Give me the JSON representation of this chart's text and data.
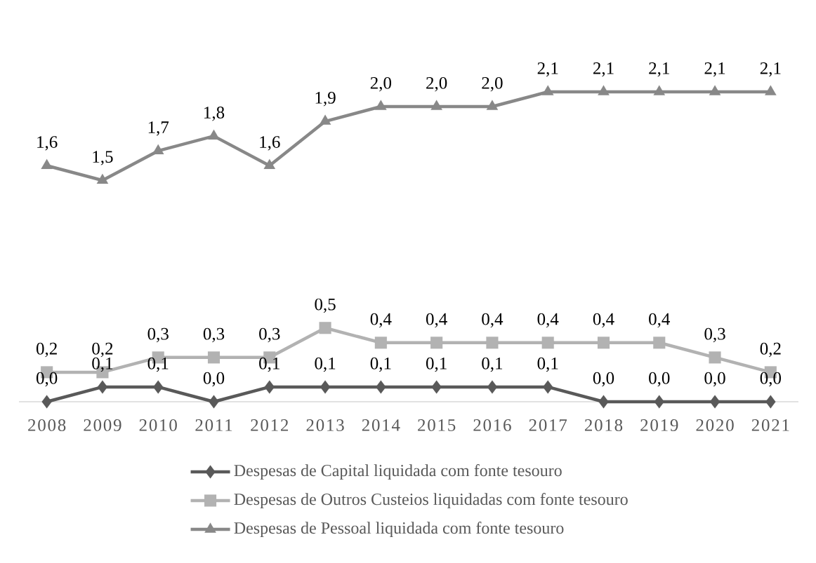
{
  "chart_data": {
    "type": "line",
    "categories": [
      "2008",
      "2009",
      "2010",
      "2011",
      "2012",
      "2013",
      "2014",
      "2015",
      "2016",
      "2017",
      "2018",
      "2019",
      "2020",
      "2021"
    ],
    "tick_labels": "x",
    "legend": "bottom",
    "series": [
      {
        "name": "Despesas de Capital liquidada com fonte tesouro",
        "color": "#595959",
        "marker": "diamond",
        "values": [
          0.0,
          0.1,
          0.1,
          0.0,
          0.1,
          0.1,
          0.1,
          0.1,
          0.1,
          0.1,
          0.0,
          0.0,
          0.0,
          0.0
        ],
        "value_labels": [
          "0,0",
          "0,1",
          "0,1",
          "0,0",
          "0,1",
          "0,1",
          "0,1",
          "0,1",
          "0,1",
          "0,1",
          "0,0",
          "0,0",
          "0,0",
          "0,0"
        ]
      },
      {
        "name": "Despesas de Outros Custeios liquidadas com fonte tesouro",
        "color": "#b2b2b2",
        "marker": "square",
        "values": [
          0.2,
          0.2,
          0.3,
          0.3,
          0.3,
          0.5,
          0.4,
          0.4,
          0.4,
          0.4,
          0.4,
          0.4,
          0.3,
          0.2
        ],
        "value_labels": [
          "0,2",
          "0,2",
          "0,3",
          "0,3",
          "0,3",
          "0,5",
          "0,4",
          "0,4",
          "0,4",
          "0,4",
          "0,4",
          "0,4",
          "0,3",
          "0,2"
        ]
      },
      {
        "name": "Despesas de Pessoal liquidada com fonte tesouro",
        "color": "#888888",
        "marker": "triangle",
        "values": [
          1.6,
          1.5,
          1.7,
          1.8,
          1.6,
          1.9,
          2.0,
          2.0,
          2.0,
          2.1,
          2.1,
          2.1,
          2.1,
          2.1
        ],
        "value_labels": [
          "1,6",
          "1,5",
          "1,7",
          "1,8",
          "1,6",
          "1,9",
          "2,0",
          "2,0",
          "2,0",
          "2,1",
          "2,1",
          "2,1",
          "2,1",
          "2,1"
        ]
      }
    ]
  }
}
